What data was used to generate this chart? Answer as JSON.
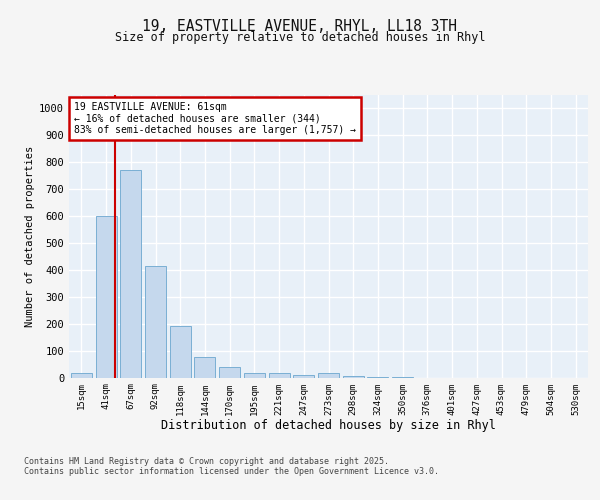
{
  "title": "19, EASTVILLE AVENUE, RHYL, LL18 3TH",
  "subtitle": "Size of property relative to detached houses in Rhyl",
  "xlabel": "Distribution of detached houses by size in Rhyl",
  "ylabel": "Number of detached properties",
  "categories": [
    "15sqm",
    "41sqm",
    "67sqm",
    "92sqm",
    "118sqm",
    "144sqm",
    "170sqm",
    "195sqm",
    "221sqm",
    "247sqm",
    "273sqm",
    "298sqm",
    "324sqm",
    "350sqm",
    "376sqm",
    "401sqm",
    "427sqm",
    "453sqm",
    "479sqm",
    "504sqm",
    "530sqm"
  ],
  "values": [
    15,
    600,
    770,
    415,
    190,
    75,
    38,
    18,
    15,
    10,
    15,
    5,
    2,
    1,
    0,
    0,
    0,
    0,
    0,
    0,
    0
  ],
  "bar_color": "#c5d8ed",
  "bar_edge_color": "#7aafd4",
  "ylim": [
    0,
    1050
  ],
  "yticks": [
    0,
    100,
    200,
    300,
    400,
    500,
    600,
    700,
    800,
    900,
    1000
  ],
  "property_line_x": 1.38,
  "annotation_text": "19 EASTVILLE AVENUE: 61sqm\n← 16% of detached houses are smaller (344)\n83% of semi-detached houses are larger (1,757) →",
  "annotation_box_color": "#cc0000",
  "footer_line1": "Contains HM Land Registry data © Crown copyright and database right 2025.",
  "footer_line2": "Contains public sector information licensed under the Open Government Licence v3.0.",
  "plot_bg_color": "#e8f0f8",
  "fig_bg_color": "#f5f5f5",
  "grid_color": "#ffffff"
}
